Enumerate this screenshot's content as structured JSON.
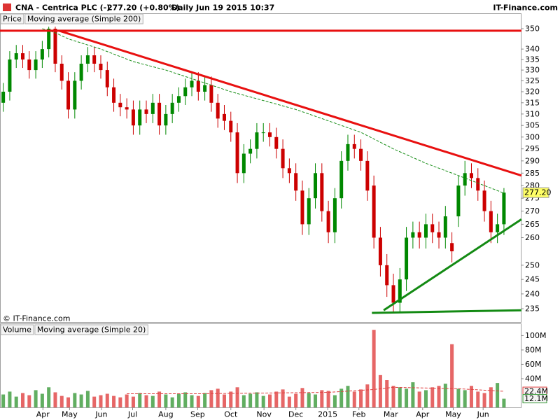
{
  "chart_data": [
    {
      "type": "candlestick",
      "title": "CNA - Centrica PLC (-)",
      "subtitle": "277.20 (+0.80%)",
      "period": "Daily  Jun 19 2015 10:37",
      "source": "IT-Finance.com",
      "copyright": "© IT-Finance.com",
      "log_scale": true,
      "xlim": [
        -0.5,
        79.7
      ],
      "xticks": [
        {
          "value": 6.1,
          "label": "Apr"
        },
        {
          "value": 10.2,
          "label": "May"
        },
        {
          "value": 15.1,
          "label": "Jun"
        },
        {
          "value": 19.9,
          "label": "Jul"
        },
        {
          "value": 25.0,
          "label": "Aug"
        },
        {
          "value": 29.9,
          "label": "Sep"
        },
        {
          "value": 35.0,
          "label": "Oct"
        },
        {
          "value": 40.1,
          "label": "Nov"
        },
        {
          "value": 45.0,
          "label": "Dec"
        },
        {
          "value": 49.9,
          "label": "2015"
        },
        {
          "value": 54.7,
          "label": "Feb"
        },
        {
          "value": 59.6,
          "label": "Mar"
        },
        {
          "value": 64.5,
          "label": "Apr"
        },
        {
          "value": 69.2,
          "label": "May"
        },
        {
          "value": 73.8,
          "label": "Jun"
        }
      ],
      "ylim": [
        230.6,
        352.1
      ],
      "yticks": [
        235,
        240,
        245,
        250,
        260,
        265,
        270,
        275,
        280,
        285,
        290,
        295,
        300,
        305,
        310,
        315,
        320,
        325,
        330,
        335,
        340,
        350
      ],
      "series": [
        {
          "name": "Price",
          "up_color": "#008800",
          "down_color": "#cc0000",
          "open": [
            315,
            320,
            335,
            338,
            335,
            330,
            335,
            340,
            350,
            333,
            325,
            312,
            325,
            333,
            337,
            333,
            330,
            322,
            315,
            313,
            312,
            305,
            312,
            310,
            315,
            305,
            310,
            315,
            318,
            322,
            325,
            320,
            323,
            315,
            310,
            307,
            302,
            285,
            293,
            295,
            302,
            302,
            300,
            295,
            287,
            285,
            278,
            265,
            275,
            285,
            270,
            262,
            275,
            290,
            297,
            295,
            290,
            280,
            260,
            250,
            243,
            237,
            245,
            260,
            262,
            260,
            265,
            262,
            260,
            258,
            268,
            280,
            285,
            283,
            278,
            270,
            262,
            265
          ],
          "high": [
            324,
            339,
            342,
            342,
            339,
            339,
            344,
            351,
            351,
            337,
            329,
            329,
            337,
            341,
            341,
            337,
            334,
            326,
            319,
            317,
            316,
            316,
            316,
            319,
            319,
            314,
            319,
            322,
            326,
            329,
            329,
            327,
            327,
            319,
            314,
            311,
            306,
            297,
            299,
            306,
            306,
            306,
            304,
            299,
            291,
            289,
            282,
            279,
            289,
            289,
            274,
            279,
            294,
            301,
            301,
            299,
            294,
            284,
            264,
            254,
            247,
            249,
            264,
            266,
            266,
            269,
            269,
            266,
            272,
            262,
            284,
            290,
            289,
            287,
            282,
            274,
            269,
            279
          ],
          "low": [
            311,
            316,
            331,
            331,
            326,
            326,
            331,
            336,
            329,
            321,
            308,
            308,
            321,
            329,
            329,
            326,
            318,
            311,
            309,
            308,
            301,
            301,
            306,
            306,
            301,
            301,
            306,
            311,
            314,
            318,
            316,
            316,
            311,
            304,
            303,
            298,
            281,
            281,
            289,
            291,
            298,
            296,
            291,
            283,
            281,
            274,
            261,
            261,
            271,
            266,
            258,
            258,
            271,
            286,
            291,
            286,
            274,
            256,
            246,
            239,
            234,
            234,
            241,
            256,
            256,
            256,
            258,
            256,
            256,
            251,
            264,
            276,
            279,
            274,
            266,
            258,
            258,
            261
          ],
          "close": [
            320,
            335,
            338,
            335,
            330,
            335,
            340,
            350,
            333,
            325,
            312,
            325,
            333,
            337,
            333,
            330,
            322,
            315,
            313,
            312,
            305,
            312,
            310,
            315,
            305,
            310,
            315,
            318,
            322,
            325,
            320,
            323,
            315,
            308,
            307,
            302,
            285,
            293,
            295,
            302,
            302,
            300,
            295,
            287,
            285,
            278,
            265,
            275,
            285,
            270,
            262,
            275,
            290,
            297,
            295,
            290,
            278,
            260,
            250,
            243,
            237,
            245,
            260,
            262,
            260,
            265,
            262,
            260,
            268,
            255,
            280,
            285,
            283,
            278,
            270,
            262,
            265,
            277.2
          ],
          "last_value": {
            "value": 277.2,
            "label": "277.20"
          }
        },
        {
          "name": "Moving average (Simple 200)",
          "color": "#1a8f1a",
          "x": [
            6,
            8,
            10,
            15,
            20,
            25,
            30,
            35,
            40,
            45,
            50,
            55,
            60,
            65,
            70,
            75,
            77
          ],
          "values": [
            350,
            348,
            345,
            340,
            334,
            330,
            325,
            320,
            316,
            312,
            307,
            302,
            295,
            289,
            284,
            279,
            277
          ]
        }
      ],
      "trendlines": [
        {
          "color": "#e81010",
          "x": [
            -0.5,
            79.7
          ],
          "values": [
            349,
            349
          ]
        },
        {
          "color": "#e81010",
          "x": [
            8.6,
            79.7
          ],
          "values": [
            349,
            284
          ]
        },
        {
          "color": "#138a13",
          "x": [
            58.5,
            79.7
          ],
          "values": [
            234.5,
            266.9
          ]
        },
        {
          "color": "#138a13",
          "x": [
            56.7,
            79.7
          ],
          "values": [
            233.6,
            234.5
          ]
        }
      ]
    },
    {
      "type": "bar",
      "ylim": [
        0,
        116
      ],
      "yticks": [
        {
          "value": 40,
          "label": "40M"
        },
        {
          "value": 60,
          "label": "60M"
        },
        {
          "value": 80,
          "label": "80M"
        },
        {
          "value": 100,
          "label": "100M"
        }
      ],
      "series": [
        {
          "name": "Volume",
          "color": "#3a9a3a",
          "values": [
            18,
            22,
            15,
            20,
            17,
            24,
            19,
            28,
            21,
            16,
            14,
            20,
            18,
            23,
            15,
            17,
            19,
            16,
            14,
            18,
            15,
            20,
            17,
            16,
            22,
            18,
            14,
            19,
            21,
            17,
            16,
            20,
            24,
            26,
            18,
            22,
            28,
            17,
            19,
            21,
            16,
            18,
            22,
            25,
            15,
            19,
            27,
            20,
            18,
            24,
            23,
            17,
            26,
            30,
            22,
            25,
            32,
            108,
            45,
            38,
            30,
            28,
            26,
            35,
            22,
            24,
            28,
            30,
            33,
            88,
            26,
            24,
            30,
            22,
            20,
            28,
            34,
            12.1
          ],
          "last_value": {
            "value": 12.1,
            "label": "12.1M"
          }
        },
        {
          "name": "Moving average (Simple 20)",
          "color": "#e04040",
          "x": [
            19,
            30,
            40,
            50,
            57,
            60,
            65,
            70,
            77
          ],
          "values": [
            19,
            19,
            20,
            21,
            25,
            28,
            27,
            26,
            22.4
          ],
          "last_value": {
            "value": 22.4,
            "label": "22.4M"
          }
        }
      ]
    }
  ]
}
